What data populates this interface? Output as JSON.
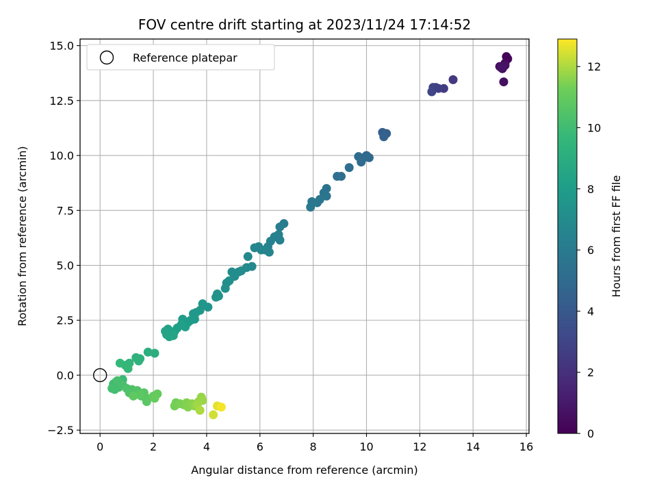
{
  "chart_data": {
    "type": "scatter",
    "title": "FOV centre drift starting at 2023/11/24 17:14:52",
    "xlabel": "Angular distance from reference (arcmin)",
    "ylabel": "Rotation from reference (arcmin)",
    "xlim": [
      -0.75,
      16.1
    ],
    "ylim": [
      -2.65,
      15.3
    ],
    "xticks": [
      0,
      2,
      4,
      6,
      8,
      10,
      12,
      14,
      16
    ],
    "yticks": [
      -2.5,
      0.0,
      2.5,
      5.0,
      7.5,
      10.0,
      12.5,
      15.0
    ],
    "xtick_labels": [
      "0",
      "2",
      "4",
      "6",
      "8",
      "10",
      "12",
      "14",
      "16"
    ],
    "ytick_labels": [
      "−2.5",
      "0.0",
      "2.5",
      "5.0",
      "7.5",
      "10.0",
      "12.5",
      "15.0"
    ],
    "grid": true,
    "legend": {
      "placement": "top-left",
      "entries": [
        "Reference platepar"
      ]
    },
    "reference_point": {
      "x": 0,
      "y": 0
    },
    "colorbar": {
      "label": "Hours from first FF file",
      "min": 0,
      "max": 12.9,
      "ticks": [
        0,
        2,
        4,
        6,
        8,
        10,
        12
      ],
      "tick_labels": [
        "0",
        "2",
        "4",
        "6",
        "8",
        "10",
        "12"
      ],
      "colormap": "viridis"
    },
    "points": [
      {
        "x": 15.25,
        "y": 14.5,
        "h": 0.1
      },
      {
        "x": 15.3,
        "y": 14.4,
        "h": 0.2
      },
      {
        "x": 15.2,
        "y": 14.2,
        "h": 0.3
      },
      {
        "x": 15.0,
        "y": 14.05,
        "h": 0.4
      },
      {
        "x": 15.1,
        "y": 13.95,
        "h": 0.5
      },
      {
        "x": 15.15,
        "y": 13.35,
        "h": 0.6
      },
      {
        "x": 15.2,
        "y": 14.1,
        "h": 0.7
      },
      {
        "x": 15.05,
        "y": 14.0,
        "h": 0.8
      },
      {
        "x": 13.25,
        "y": 13.45,
        "h": 2.4
      },
      {
        "x": 12.9,
        "y": 13.05,
        "h": 2.6
      },
      {
        "x": 12.6,
        "y": 13.1,
        "h": 2.8
      },
      {
        "x": 12.5,
        "y": 13.1,
        "h": 2.9
      },
      {
        "x": 12.45,
        "y": 12.9,
        "h": 3.0
      },
      {
        "x": 12.7,
        "y": 13.05,
        "h": 2.7
      },
      {
        "x": 10.6,
        "y": 11.05,
        "h": 4.3
      },
      {
        "x": 10.75,
        "y": 11.0,
        "h": 4.4
      },
      {
        "x": 10.65,
        "y": 10.85,
        "h": 4.5
      },
      {
        "x": 10.0,
        "y": 10.0,
        "h": 4.8
      },
      {
        "x": 10.1,
        "y": 9.9,
        "h": 4.9
      },
      {
        "x": 9.9,
        "y": 9.9,
        "h": 5.0
      },
      {
        "x": 9.7,
        "y": 9.95,
        "h": 5.0
      },
      {
        "x": 9.8,
        "y": 9.7,
        "h": 5.1
      },
      {
        "x": 9.35,
        "y": 9.45,
        "h": 5.2
      },
      {
        "x": 9.05,
        "y": 9.05,
        "h": 5.3
      },
      {
        "x": 8.9,
        "y": 9.05,
        "h": 5.35
      },
      {
        "x": 8.5,
        "y": 8.5,
        "h": 5.5
      },
      {
        "x": 8.4,
        "y": 8.3,
        "h": 5.6
      },
      {
        "x": 8.5,
        "y": 8.15,
        "h": 5.65
      },
      {
        "x": 8.25,
        "y": 8.0,
        "h": 5.7
      },
      {
        "x": 8.15,
        "y": 7.85,
        "h": 5.75
      },
      {
        "x": 7.95,
        "y": 7.9,
        "h": 5.8
      },
      {
        "x": 7.9,
        "y": 7.65,
        "h": 5.85
      },
      {
        "x": 6.9,
        "y": 6.9,
        "h": 6.1
      },
      {
        "x": 6.75,
        "y": 6.75,
        "h": 6.2
      },
      {
        "x": 6.7,
        "y": 6.4,
        "h": 6.3
      },
      {
        "x": 6.75,
        "y": 6.15,
        "h": 6.35
      },
      {
        "x": 6.55,
        "y": 6.3,
        "h": 6.4
      },
      {
        "x": 6.4,
        "y": 6.1,
        "h": 6.45
      },
      {
        "x": 6.3,
        "y": 5.85,
        "h": 6.5
      },
      {
        "x": 6.2,
        "y": 5.7,
        "h": 6.55
      },
      {
        "x": 6.05,
        "y": 5.7,
        "h": 6.6
      },
      {
        "x": 6.35,
        "y": 5.6,
        "h": 6.65
      },
      {
        "x": 5.95,
        "y": 5.85,
        "h": 6.7
      },
      {
        "x": 5.8,
        "y": 5.8,
        "h": 6.72
      },
      {
        "x": 5.7,
        "y": 4.95,
        "h": 6.8
      },
      {
        "x": 5.55,
        "y": 5.4,
        "h": 6.85
      },
      {
        "x": 5.5,
        "y": 4.9,
        "h": 6.9
      },
      {
        "x": 5.3,
        "y": 4.75,
        "h": 6.95
      },
      {
        "x": 5.2,
        "y": 4.7,
        "h": 7.0
      },
      {
        "x": 5.05,
        "y": 4.5,
        "h": 7.05
      },
      {
        "x": 4.95,
        "y": 4.7,
        "h": 7.1
      },
      {
        "x": 4.75,
        "y": 4.2,
        "h": 7.15
      },
      {
        "x": 4.85,
        "y": 4.3,
        "h": 7.2
      },
      {
        "x": 4.7,
        "y": 3.95,
        "h": 7.25
      },
      {
        "x": 4.4,
        "y": 3.7,
        "h": 7.35
      },
      {
        "x": 4.35,
        "y": 3.55,
        "h": 7.4
      },
      {
        "x": 4.45,
        "y": 3.6,
        "h": 7.45
      },
      {
        "x": 4.05,
        "y": 3.1,
        "h": 7.55
      },
      {
        "x": 3.85,
        "y": 3.25,
        "h": 7.6
      },
      {
        "x": 3.75,
        "y": 2.95,
        "h": 7.65
      },
      {
        "x": 3.6,
        "y": 2.85,
        "h": 7.7
      },
      {
        "x": 3.5,
        "y": 2.8,
        "h": 7.75
      },
      {
        "x": 3.55,
        "y": 2.55,
        "h": 7.8
      },
      {
        "x": 3.4,
        "y": 2.5,
        "h": 7.9
      },
      {
        "x": 3.3,
        "y": 2.4,
        "h": 7.95
      },
      {
        "x": 3.1,
        "y": 2.55,
        "h": 8.0
      },
      {
        "x": 3.2,
        "y": 2.2,
        "h": 8.05
      },
      {
        "x": 3.05,
        "y": 2.3,
        "h": 8.1
      },
      {
        "x": 2.9,
        "y": 2.15,
        "h": 8.15
      },
      {
        "x": 2.8,
        "y": 2.0,
        "h": 8.2
      },
      {
        "x": 2.7,
        "y": 1.95,
        "h": 8.25
      },
      {
        "x": 2.55,
        "y": 2.1,
        "h": 8.3
      },
      {
        "x": 2.5,
        "y": 1.85,
        "h": 8.35
      },
      {
        "x": 2.45,
        "y": 2.0,
        "h": 8.4
      },
      {
        "x": 2.6,
        "y": 1.75,
        "h": 8.45
      },
      {
        "x": 2.75,
        "y": 1.8,
        "h": 8.5
      },
      {
        "x": 2.05,
        "y": 1.0,
        "h": 9.0
      },
      {
        "x": 1.8,
        "y": 1.05,
        "h": 9.1
      },
      {
        "x": 1.5,
        "y": 0.75,
        "h": 9.2
      },
      {
        "x": 1.35,
        "y": 0.8,
        "h": 9.3
      },
      {
        "x": 1.45,
        "y": 0.65,
        "h": 9.35
      },
      {
        "x": 1.1,
        "y": 0.55,
        "h": 9.5
      },
      {
        "x": 0.95,
        "y": 0.45,
        "h": 9.6
      },
      {
        "x": 0.75,
        "y": 0.55,
        "h": 9.65
      },
      {
        "x": 1.05,
        "y": 0.3,
        "h": 9.7
      },
      {
        "x": 0.85,
        "y": -0.2,
        "h": 9.85
      },
      {
        "x": 0.8,
        "y": -0.35,
        "h": 9.9
      },
      {
        "x": 0.6,
        "y": -0.3,
        "h": 9.95
      },
      {
        "x": 0.5,
        "y": -0.4,
        "h": 10.0
      },
      {
        "x": 0.55,
        "y": -0.65,
        "h": 10.05
      },
      {
        "x": 0.7,
        "y": -0.55,
        "h": 10.1
      },
      {
        "x": 0.45,
        "y": -0.6,
        "h": 10.15
      },
      {
        "x": 0.65,
        "y": -0.25,
        "h": 10.2
      },
      {
        "x": 0.85,
        "y": -0.45,
        "h": 10.25
      },
      {
        "x": 1.0,
        "y": -0.6,
        "h": 10.35
      },
      {
        "x": 1.2,
        "y": -0.65,
        "h": 10.4
      },
      {
        "x": 1.1,
        "y": -0.8,
        "h": 10.45
      },
      {
        "x": 1.3,
        "y": -0.85,
        "h": 10.5
      },
      {
        "x": 1.4,
        "y": -0.7,
        "h": 10.55
      },
      {
        "x": 1.55,
        "y": -0.95,
        "h": 10.6
      },
      {
        "x": 1.65,
        "y": -0.8,
        "h": 10.65
      },
      {
        "x": 1.75,
        "y": -1.05,
        "h": 10.7
      },
      {
        "x": 1.75,
        "y": -1.2,
        "h": 10.75
      },
      {
        "x": 1.5,
        "y": -0.9,
        "h": 10.8
      },
      {
        "x": 1.25,
        "y": -0.95,
        "h": 10.85
      },
      {
        "x": 2.0,
        "y": -0.95,
        "h": 10.95
      },
      {
        "x": 2.15,
        "y": -0.85,
        "h": 11.0
      },
      {
        "x": 2.05,
        "y": -1.05,
        "h": 11.05
      },
      {
        "x": 2.85,
        "y": -1.25,
        "h": 11.3
      },
      {
        "x": 2.8,
        "y": -1.4,
        "h": 11.35
      },
      {
        "x": 3.0,
        "y": -1.3,
        "h": 11.4
      },
      {
        "x": 3.15,
        "y": -1.35,
        "h": 11.45
      },
      {
        "x": 3.25,
        "y": -1.25,
        "h": 11.5
      },
      {
        "x": 3.3,
        "y": -1.45,
        "h": 11.55
      },
      {
        "x": 3.45,
        "y": -1.3,
        "h": 11.6
      },
      {
        "x": 3.55,
        "y": -1.4,
        "h": 11.65
      },
      {
        "x": 3.7,
        "y": -1.2,
        "h": 11.7
      },
      {
        "x": 3.8,
        "y": -1.0,
        "h": 11.75
      },
      {
        "x": 3.85,
        "y": -1.15,
        "h": 11.8
      },
      {
        "x": 3.65,
        "y": -1.35,
        "h": 11.85
      },
      {
        "x": 3.75,
        "y": -1.6,
        "h": 12.0
      },
      {
        "x": 4.25,
        "y": -1.8,
        "h": 12.4
      },
      {
        "x": 4.4,
        "y": -1.4,
        "h": 12.6
      },
      {
        "x": 4.55,
        "y": -1.45,
        "h": 12.8
      }
    ]
  }
}
